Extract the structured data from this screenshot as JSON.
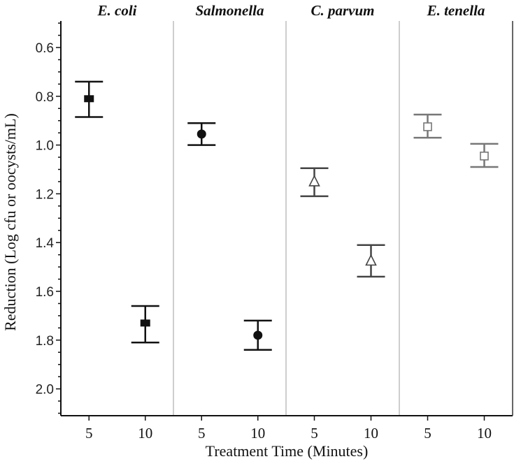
{
  "chart_data": {
    "type": "scatter",
    "xlabel": "Treatment Time (Minutes)",
    "ylabel": "Reduction (Log cfu or oocysts/mL)",
    "ylim": [
      2.1,
      0.5
    ],
    "y_inverted": true,
    "yticks": [
      "0.6",
      "0.8",
      "1.0",
      "1.2",
      "1.4",
      "1.6",
      "1.8",
      "2.0"
    ],
    "error_bars": true,
    "panels": [
      {
        "title": "E. coli",
        "categories": [
          "5",
          "10"
        ],
        "values": [
          0.81,
          1.73
        ],
        "error_low": [
          0.74,
          1.66
        ],
        "error_high": [
          0.885,
          1.81
        ],
        "marker": "filled-square",
        "color": "#111111"
      },
      {
        "title": "Salmonella",
        "categories": [
          "5",
          "10"
        ],
        "values": [
          0.955,
          1.78
        ],
        "error_low": [
          0.91,
          1.72
        ],
        "error_high": [
          1.0,
          1.84
        ],
        "marker": "filled-circle",
        "color": "#111111"
      },
      {
        "title": "C. parvum",
        "categories": [
          "5",
          "10"
        ],
        "values": [
          1.15,
          1.475
        ],
        "error_low": [
          1.095,
          1.41
        ],
        "error_high": [
          1.21,
          1.54
        ],
        "marker": "open-triangle",
        "color": "#444444"
      },
      {
        "title": "E. tenella",
        "categories": [
          "5",
          "10"
        ],
        "values": [
          0.925,
          1.045
        ],
        "error_low": [
          0.875,
          0.995
        ],
        "error_high": [
          0.97,
          1.09
        ],
        "marker": "open-square",
        "color": "#777777"
      }
    ]
  }
}
